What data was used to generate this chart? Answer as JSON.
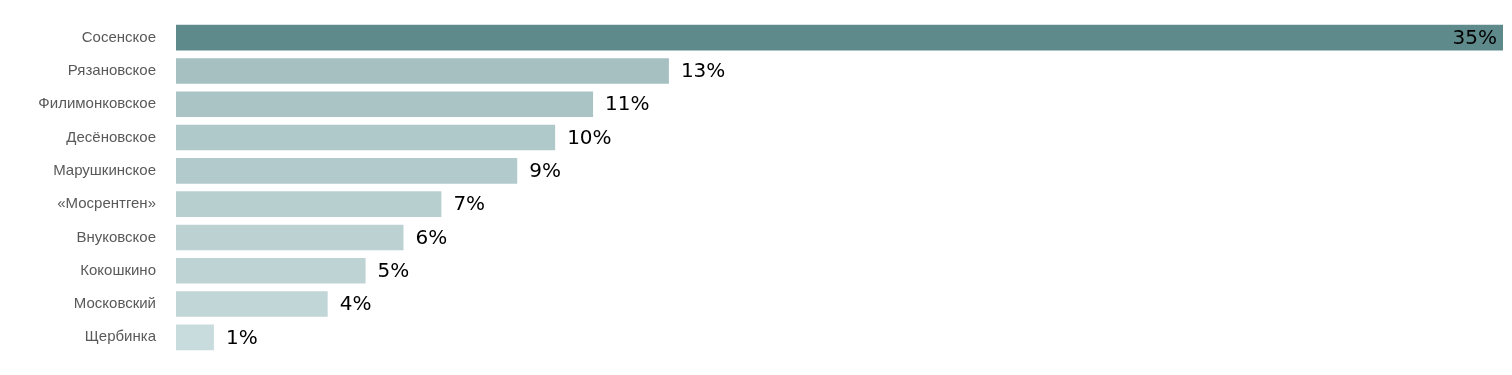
{
  "chart_data": {
    "type": "bar",
    "orientation": "horizontal",
    "tick_labels": "y",
    "categories": [
      "Сосенское",
      "Рязановское",
      "Филимонковское",
      "Десёновское",
      "Марушкинское",
      "«Мосрентген»",
      "Внуковское",
      "Кокошкино",
      "Московский",
      "Щербинка"
    ],
    "values": [
      35,
      13,
      11,
      10,
      9,
      7,
      6,
      5,
      4,
      1
    ],
    "value_labels": [
      "35%",
      "13%",
      "11%",
      "10%",
      "9%",
      "7%",
      "6%",
      "5%",
      "4%",
      "1%"
    ],
    "colors": [
      "#5f8a8b",
      "#a6c0c2",
      "#aac3c5",
      "#afc8c9",
      "#b2cacb",
      "#b8cfd0",
      "#bbd1d2",
      "#bed3d4",
      "#c1d6d7",
      "#c8dcdd"
    ],
    "legend": false
  }
}
